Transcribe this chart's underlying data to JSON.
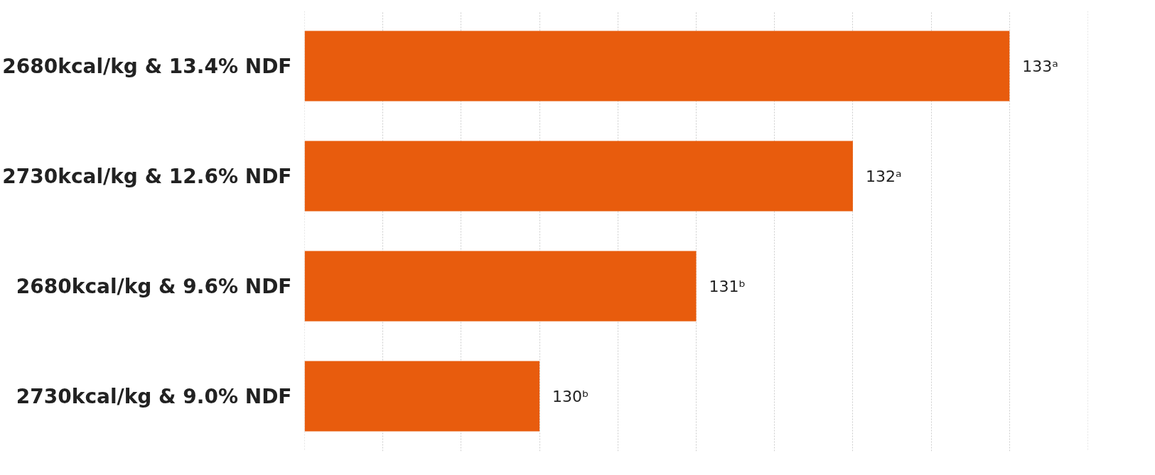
{
  "chart_data": {
    "type": "bar",
    "orientation": "horizontal",
    "categories": [
      "2680kcal/kg & 13.4% NDF",
      "2730kcal/kg & 12.6% NDF",
      "2680kcal/kg & 9.6% NDF",
      "2730kcal/kg & 9.0% NDF"
    ],
    "values": [
      133,
      132,
      131,
      130
    ],
    "value_labels": [
      "133ᵃ",
      "132ᵃ",
      "131ᵇ",
      "130ᵇ"
    ],
    "color": "#e85c0d",
    "xlim": [
      128.5,
      133.5
    ],
    "xticks": [
      128.5,
      129,
      129.5,
      130,
      130.5,
      131,
      131.5,
      132,
      132.5,
      133,
      133.5
    ],
    "grid": "x",
    "tick_labels": "y"
  }
}
